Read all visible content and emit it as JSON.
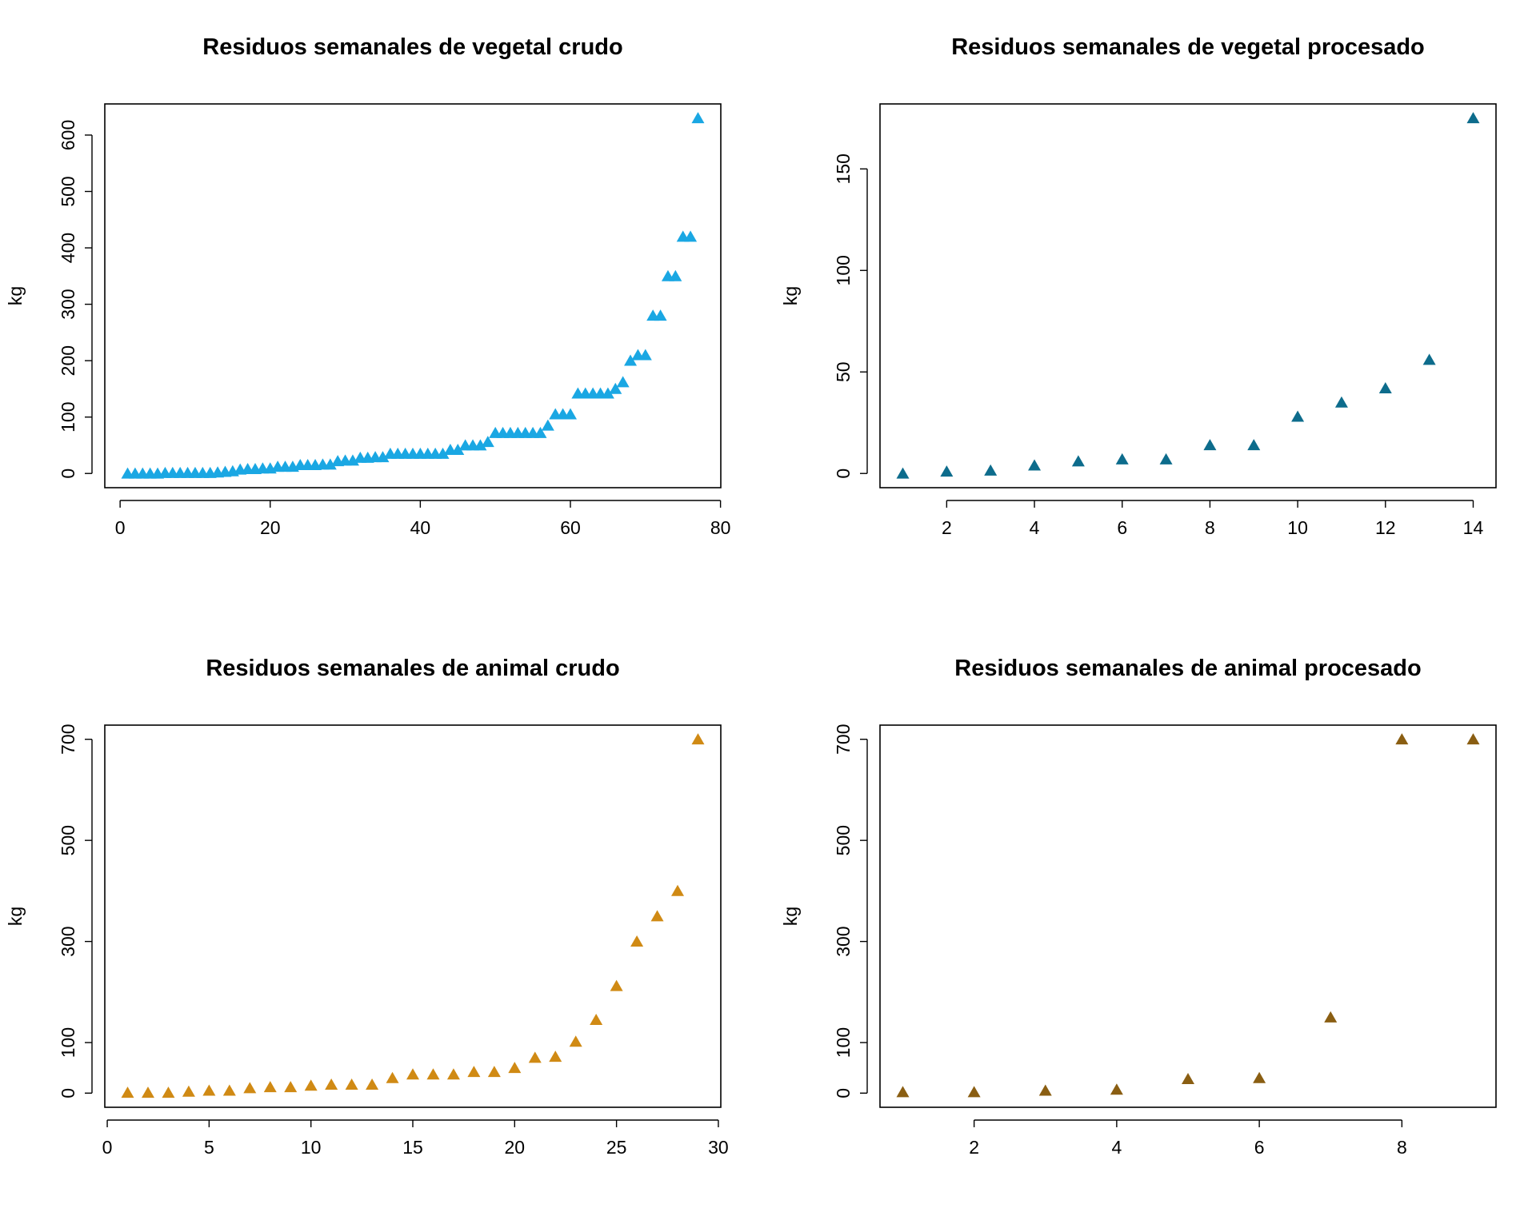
{
  "chart_data": [
    {
      "type": "scatter",
      "title": "Residuos semanales de vegetal crudo",
      "y_label": "kg",
      "color": "#1aa7e3",
      "marker": "triangle",
      "x": [
        1,
        2,
        3,
        4,
        5,
        6,
        7,
        8,
        9,
        10,
        11,
        12,
        13,
        14,
        15,
        16,
        17,
        18,
        19,
        20,
        21,
        22,
        23,
        24,
        25,
        26,
        27,
        28,
        29,
        30,
        31,
        32,
        33,
        34,
        35,
        36,
        37,
        38,
        39,
        40,
        41,
        42,
        43,
        44,
        45,
        46,
        47,
        48,
        49,
        50,
        51,
        52,
        53,
        54,
        55,
        56,
        57,
        58,
        59,
        60,
        61,
        62,
        63,
        64,
        65,
        66,
        67,
        68,
        69,
        70,
        71,
        72,
        73,
        74,
        75,
        76,
        77
      ],
      "values": [
        0,
        0,
        0,
        0,
        0,
        1,
        1,
        1,
        1,
        1,
        1,
        1,
        2,
        3,
        4,
        7,
        8,
        8,
        9,
        9,
        12,
        12,
        12,
        15,
        15,
        15,
        16,
        16,
        22,
        23,
        23,
        28,
        28,
        29,
        29,
        35,
        35,
        35,
        35,
        35,
        35,
        35,
        35,
        42,
        42,
        50,
        50,
        50,
        56,
        72,
        72,
        72,
        72,
        72,
        72,
        72,
        85,
        105,
        105,
        105,
        142,
        142,
        142,
        142,
        142,
        150,
        162,
        200,
        210,
        210,
        280,
        280,
        350,
        350,
        420,
        420,
        630
      ],
      "xlim": [
        -2.04,
        80.04
      ],
      "ylim": [
        -25.2,
        655.2
      ],
      "xticks": [
        0,
        20,
        40,
        60,
        80
      ],
      "yticks": [
        0,
        100,
        200,
        300,
        400,
        500,
        600
      ]
    },
    {
      "type": "scatter",
      "title": "Residuos semanales de vegetal procesado",
      "y_label": "kg",
      "color": "#0d6c8c",
      "marker": "triangle",
      "x": [
        1,
        2,
        3,
        4,
        5,
        6,
        7,
        8,
        9,
        10,
        11,
        12,
        13,
        14
      ],
      "values": [
        0,
        1,
        1.5,
        4,
        6,
        7,
        7,
        14,
        14,
        28,
        35,
        42,
        56,
        175
      ],
      "xlim": [
        0.48,
        14.52
      ],
      "ylim": [
        -7,
        182
      ],
      "xticks": [
        2,
        4,
        6,
        8,
        10,
        12,
        14
      ],
      "yticks": [
        0,
        50,
        100,
        150
      ]
    },
    {
      "type": "scatter",
      "title": "Residuos semanales de animal crudo",
      "y_label": "kg",
      "color": "#d08a14",
      "marker": "triangle",
      "x": [
        1,
        2,
        3,
        4,
        5,
        6,
        7,
        8,
        9,
        10,
        11,
        12,
        13,
        14,
        15,
        16,
        17,
        18,
        19,
        20,
        21,
        22,
        23,
        24,
        25,
        26,
        27,
        28,
        29
      ],
      "values": [
        1,
        1,
        1,
        3,
        5,
        5,
        10,
        12,
        12,
        15,
        17,
        17,
        17,
        30,
        37,
        37,
        37,
        42,
        42,
        50,
        70,
        72,
        102,
        145,
        212,
        300,
        350,
        400,
        700
      ],
      "xlim": [
        -0.12,
        30.12
      ],
      "ylim": [
        -28,
        728
      ],
      "xticks": [
        0,
        5,
        10,
        15,
        20,
        25,
        30
      ],
      "yticks": [
        0,
        100,
        300,
        500,
        700
      ]
    },
    {
      "type": "scatter",
      "title": "Residuos semanales de animal procesado",
      "y_label": "kg",
      "color": "#8a5e12",
      "marker": "triangle",
      "x": [
        1,
        2,
        3,
        4,
        5,
        6,
        7,
        8,
        9
      ],
      "values": [
        2,
        2,
        5,
        7,
        28,
        30,
        150,
        700,
        700
      ],
      "xlim": [
        0.68,
        9.32
      ],
      "ylim": [
        -28,
        728
      ],
      "xticks": [
        2,
        4,
        6,
        8
      ],
      "yticks": [
        0,
        100,
        300,
        500,
        700
      ]
    }
  ]
}
